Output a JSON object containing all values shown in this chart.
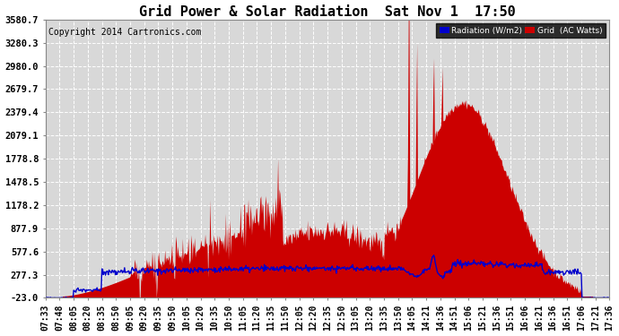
{
  "title": "Grid Power & Solar Radiation  Sat Nov 1  17:50",
  "copyright": "Copyright 2014 Cartronics.com",
  "yticks": [
    -23.0,
    277.3,
    577.6,
    877.9,
    1178.2,
    1478.5,
    1778.8,
    2079.1,
    2379.4,
    2679.7,
    2980.0,
    3280.3,
    3580.7
  ],
  "xtick_labels": [
    "07:33",
    "07:48",
    "08:05",
    "08:20",
    "08:35",
    "08:50",
    "09:05",
    "09:20",
    "09:35",
    "09:50",
    "10:05",
    "10:20",
    "10:35",
    "10:50",
    "11:05",
    "11:20",
    "11:35",
    "11:50",
    "12:05",
    "12:20",
    "12:35",
    "12:50",
    "13:05",
    "13:20",
    "13:35",
    "13:50",
    "14:05",
    "14:21",
    "14:36",
    "14:51",
    "15:06",
    "15:21",
    "15:36",
    "15:51",
    "16:06",
    "16:21",
    "16:36",
    "16:51",
    "17:06",
    "17:21",
    "17:36"
  ],
  "ylim": [
    -23.0,
    3580.7
  ],
  "bg_color": "#d8d8d8",
  "grid_color": "#ffffff",
  "fill_color": "#cc0000",
  "line_color": "#0000cc",
  "title_fontsize": 11,
  "copyright_fontsize": 7,
  "tick_fontsize": 7,
  "ytick_fontsize": 7.5
}
